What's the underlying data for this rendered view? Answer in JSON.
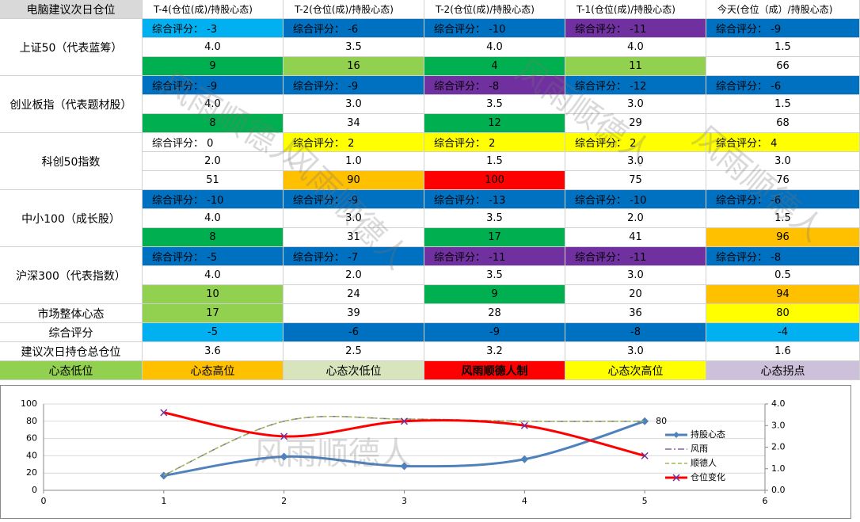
{
  "table": {
    "header": [
      "电脑建议次日仓位",
      "T-4(仓位(成)/持股心态)",
      "T-2(仓位(成)/持股心态)",
      "T-2(仓位(成)/持股心态)",
      "T-1(仓位(成)/持股心态)",
      "今天(仓位（成）/持股心态)"
    ],
    "sections": [
      {
        "name": "上证50（代表蓝筹）",
        "rows": [
          [
            {
              "text": "综合评分： -3",
              "color": "#00b0f0"
            },
            {
              "text": "综合评分： -6",
              "color": "#0070c0"
            },
            {
              "text": "综合评分： -10",
              "color": "#0070c0"
            },
            {
              "text": "综合评分： -11",
              "color": "#7030a0"
            },
            {
              "text": "综合评分： -9",
              "color": "#0070c0"
            }
          ],
          [
            {
              "text": "4.0",
              "color": "#ffffff"
            },
            {
              "text": "3.5",
              "color": "#ffffff"
            },
            {
              "text": "4.0",
              "color": "#ffffff"
            },
            {
              "text": "4.0",
              "color": "#ffffff"
            },
            {
              "text": "1.5",
              "color": "#ffffff"
            }
          ],
          [
            {
              "text": "9",
              "color": "#00b050"
            },
            {
              "text": "16",
              "color": "#92d050"
            },
            {
              "text": "4",
              "color": "#00b050"
            },
            {
              "text": "11",
              "color": "#92d050"
            },
            {
              "text": "66",
              "color": "#ffffff"
            }
          ]
        ]
      },
      {
        "name": "创业板指（代表题材股）",
        "rows": [
          [
            {
              "text": "综合评分： -9",
              "color": "#0070c0"
            },
            {
              "text": "综合评分： -9",
              "color": "#0070c0"
            },
            {
              "text": "综合评分： -8",
              "color": "#7030a0"
            },
            {
              "text": "综合评分： -12",
              "color": "#0070c0"
            },
            {
              "text": "综合评分： -6",
              "color": "#0070c0"
            }
          ],
          [
            {
              "text": "4.0",
              "color": "#ffffff"
            },
            {
              "text": "3.0",
              "color": "#ffffff"
            },
            {
              "text": "3.5",
              "color": "#ffffff"
            },
            {
              "text": "3.0",
              "color": "#ffffff"
            },
            {
              "text": "1.5",
              "color": "#ffffff"
            }
          ],
          [
            {
              "text": "8",
              "color": "#00b050"
            },
            {
              "text": "34",
              "color": "#ffffff"
            },
            {
              "text": "12",
              "color": "#00b050"
            },
            {
              "text": "29",
              "color": "#ffffff"
            },
            {
              "text": "68",
              "color": "#ffffff"
            }
          ]
        ]
      },
      {
        "name": "科创50指数",
        "rows": [
          [
            {
              "text": "综合评分： 0",
              "color": "#ffffff"
            },
            {
              "text": "综合评分： 2",
              "color": "#ffff00"
            },
            {
              "text": "综合评分： 2",
              "color": "#ffff00"
            },
            {
              "text": "综合评分： 2",
              "color": "#ffff00"
            },
            {
              "text": "综合评分： 4",
              "color": "#ffff00"
            }
          ],
          [
            {
              "text": "2.0",
              "color": "#ffffff"
            },
            {
              "text": "1.0",
              "color": "#ffffff"
            },
            {
              "text": "1.5",
              "color": "#ffffff"
            },
            {
              "text": "3.0",
              "color": "#ffffff"
            },
            {
              "text": "3.0",
              "color": "#ffffff"
            }
          ],
          [
            {
              "text": "51",
              "color": "#ffffff"
            },
            {
              "text": "90",
              "color": "#ffc000"
            },
            {
              "text": "100",
              "color": "#ff0000"
            },
            {
              "text": "75",
              "color": "#ffffff"
            },
            {
              "text": "76",
              "color": "#ffffff"
            }
          ]
        ]
      },
      {
        "name": "中小100（成长股）",
        "rows": [
          [
            {
              "text": "综合评分： -10",
              "color": "#0070c0"
            },
            {
              "text": "综合评分： -9",
              "color": "#0070c0"
            },
            {
              "text": "综合评分： -13",
              "color": "#0070c0"
            },
            {
              "text": "综合评分： -10",
              "color": "#0070c0"
            },
            {
              "text": "综合评分： -6",
              "color": "#0070c0"
            }
          ],
          [
            {
              "text": "4.0",
              "color": "#ffffff"
            },
            {
              "text": "3.0",
              "color": "#ffffff"
            },
            {
              "text": "3.5",
              "color": "#ffffff"
            },
            {
              "text": "2.0",
              "color": "#ffffff"
            },
            {
              "text": "1.5",
              "color": "#ffffff"
            }
          ],
          [
            {
              "text": "8",
              "color": "#00b050"
            },
            {
              "text": "31",
              "color": "#ffffff"
            },
            {
              "text": "17",
              "color": "#00b050"
            },
            {
              "text": "41",
              "color": "#ffffff"
            },
            {
              "text": "96",
              "color": "#ffc000"
            }
          ]
        ]
      },
      {
        "name": "沪深300（代表指数）",
        "rows": [
          [
            {
              "text": "综合评分： -5",
              "color": "#0070c0"
            },
            {
              "text": "综合评分： -7",
              "color": "#0070c0"
            },
            {
              "text": "综合评分： -11",
              "color": "#7030a0"
            },
            {
              "text": "综合评分： -11",
              "color": "#7030a0"
            },
            {
              "text": "综合评分： -8",
              "color": "#0070c0"
            }
          ],
          [
            {
              "text": "4.0",
              "color": "#ffffff"
            },
            {
              "text": "2.0",
              "color": "#ffffff"
            },
            {
              "text": "3.5",
              "color": "#ffffff"
            },
            {
              "text": "3.0",
              "color": "#ffffff"
            },
            {
              "text": "0.5",
              "color": "#ffffff"
            }
          ],
          [
            {
              "text": "10",
              "color": "#92d050"
            },
            {
              "text": "24",
              "color": "#ffffff"
            },
            {
              "text": "9",
              "color": "#00b050"
            },
            {
              "text": "20",
              "color": "#ffffff"
            },
            {
              "text": "94",
              "color": "#ffc000"
            }
          ]
        ]
      },
      {
        "name": "市场整体心态",
        "rows": [
          [
            {
              "text": "17",
              "color": "#92d050"
            },
            {
              "text": "39",
              "color": "#ffffff"
            },
            {
              "text": "28",
              "color": "#ffffff"
            },
            {
              "text": "36",
              "color": "#ffffff"
            },
            {
              "text": "80",
              "color": "#ffff00"
            }
          ]
        ]
      },
      {
        "name": "综合评分",
        "rows": [
          [
            {
              "text": "-5",
              "color": "#00b0f0"
            },
            {
              "text": "-6",
              "color": "#0070c0"
            },
            {
              "text": "-9",
              "color": "#0070c0"
            },
            {
              "text": "-8",
              "color": "#0070c0"
            },
            {
              "text": "-4",
              "color": "#00b0f0"
            }
          ]
        ]
      },
      {
        "name": "建议次日持仓总仓位",
        "rows": [
          [
            {
              "text": "3.6",
              "color": "#ffffff"
            },
            {
              "text": "2.5",
              "color": "#ffffff"
            },
            {
              "text": "3.2",
              "color": "#ffffff"
            },
            {
              "text": "3.0",
              "color": "#ffffff"
            },
            {
              "text": "1.6",
              "color": "#ffffff"
            }
          ]
        ]
      }
    ],
    "legend": [
      {
        "text": "心态低位",
        "color": "#92d050"
      },
      {
        "text": "心态高位",
        "color": "#ffc000"
      },
      {
        "text": "心态次低位",
        "color": "#d8e4bc"
      },
      {
        "text": "风雨顺德人制",
        "color": "#ff0000"
      },
      {
        "text": "心态次高位",
        "color": "#ffff00"
      },
      {
        "text": "心态拐点",
        "color": "#ccc0da"
      }
    ]
  },
  "watermark": "风雨顺德人",
  "chart_data": {
    "type": "line",
    "x": [
      1,
      2,
      3,
      4,
      5
    ],
    "xlim": [
      0,
      6
    ],
    "xticks": [
      0,
      1,
      2,
      3,
      4,
      5,
      6
    ],
    "ylim": [
      0,
      100
    ],
    "yticks": [
      0,
      20,
      40,
      60,
      80,
      100
    ],
    "y2lim": [
      0,
      4
    ],
    "y2ticks": [
      {
        "value": 0,
        "label": "0.0"
      },
      {
        "value": 1,
        "label": "1.0"
      },
      {
        "value": 2,
        "label": "2.0"
      },
      {
        "value": 3,
        "label": "3.0"
      },
      {
        "value": 4,
        "label": "4.0"
      }
    ],
    "series": [
      {
        "name": "持股心态",
        "color": "#4f81bd",
        "values": [
          17,
          39,
          28,
          36,
          80
        ],
        "marker": "diamond",
        "value_labels": [
          null,
          null,
          null,
          null,
          "80"
        ]
      },
      {
        "name": "风雨",
        "color": "#8064a2",
        "axis": "y2",
        "dash": "8 3 2 3",
        "values": [
          0.7,
          3.2,
          3.3,
          3.2,
          3.2
        ]
      },
      {
        "name": "顺德人",
        "color": "#9bbb59",
        "axis": "y2",
        "dash": "5 3",
        "values": [
          0.7,
          3.2,
          3.3,
          3.2,
          3.2
        ]
      },
      {
        "name": "仓位变化",
        "color": "#ff0000",
        "axis": "y2",
        "marker": "x",
        "values": [
          3.6,
          2.5,
          3.2,
          3.0,
          1.6
        ]
      }
    ]
  }
}
